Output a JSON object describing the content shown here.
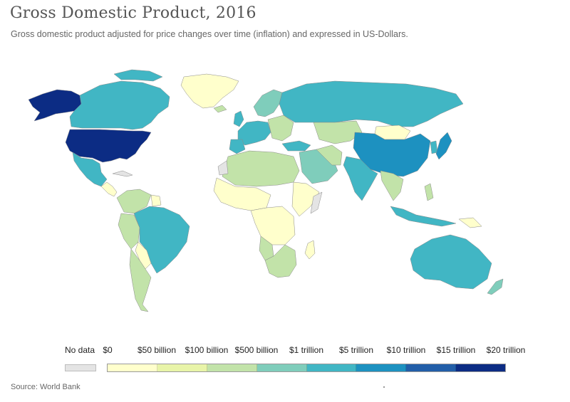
{
  "title": "Gross Domestic Product, 2016",
  "subtitle": "Gross domestic product adjusted for price changes over time (inflation) and expressed in US-Dollars.",
  "source": "Source: World Bank",
  "legend": {
    "no_data_label": "No data",
    "no_data_color": "#e4e4e4",
    "labels": [
      "$0",
      "$50 billion",
      "$100 billion",
      "$500 billion",
      "$1 trillion",
      "$5 trillion",
      "$10 trillion",
      "$15 trillion",
      "$20 trillion"
    ],
    "colors": [
      "#ffffcc",
      "#e8f4a8",
      "#c2e3a9",
      "#7fcdbb",
      "#41b6c4",
      "#1d91c0",
      "#225ea8",
      "#0c2c84"
    ]
  },
  "map_colors": {
    "usa": "#0c2c84",
    "china": "#1d91c0",
    "japan": "#1d91c0",
    "tier_5t": "#41b6c4",
    "tier_1t": "#7fcdbb",
    "tier_500b": "#c2e3a9",
    "tier_100b": "#e8f4a8",
    "tier_50b": "#ffffcc",
    "no_data": "#e4e4e4"
  }
}
